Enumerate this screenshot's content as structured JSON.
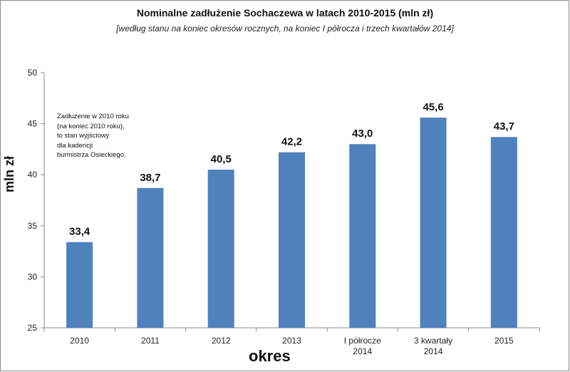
{
  "chart_data": {
    "type": "bar",
    "title": "Nominalne zadłużenie Sochaczewa w latach 2010-2015 (mln zł)",
    "subtitle": "[według stanu na koniec okresów rocznych, na koniec I półrocza i trzech kwartałów 2014]",
    "ylabel": "mln zł",
    "xlabel": "okres",
    "categories": [
      [
        "2010"
      ],
      [
        "2011"
      ],
      [
        "2012"
      ],
      [
        "2013"
      ],
      [
        "I półrocze",
        "2014"
      ],
      [
        "3 kwartały",
        "2014"
      ],
      [
        "2015"
      ]
    ],
    "values": [
      33.4,
      38.7,
      40.5,
      42.2,
      43.0,
      45.6,
      43.7
    ],
    "value_labels": [
      "33,4",
      "38,7",
      "40,5",
      "42,2",
      "43,0",
      "45,6",
      "43,7"
    ],
    "ylim": [
      25,
      50
    ],
    "yticks": [
      25,
      30,
      35,
      40,
      45,
      50
    ],
    "bar_color": "#4f81bd",
    "grid": false,
    "annotation": [
      "Zadłużenie w 2010 roku",
      "(na koniec 2010 roku),",
      "to stan wyjściowy",
      "dla kadencji",
      "burmistrza Osieckiego."
    ]
  }
}
